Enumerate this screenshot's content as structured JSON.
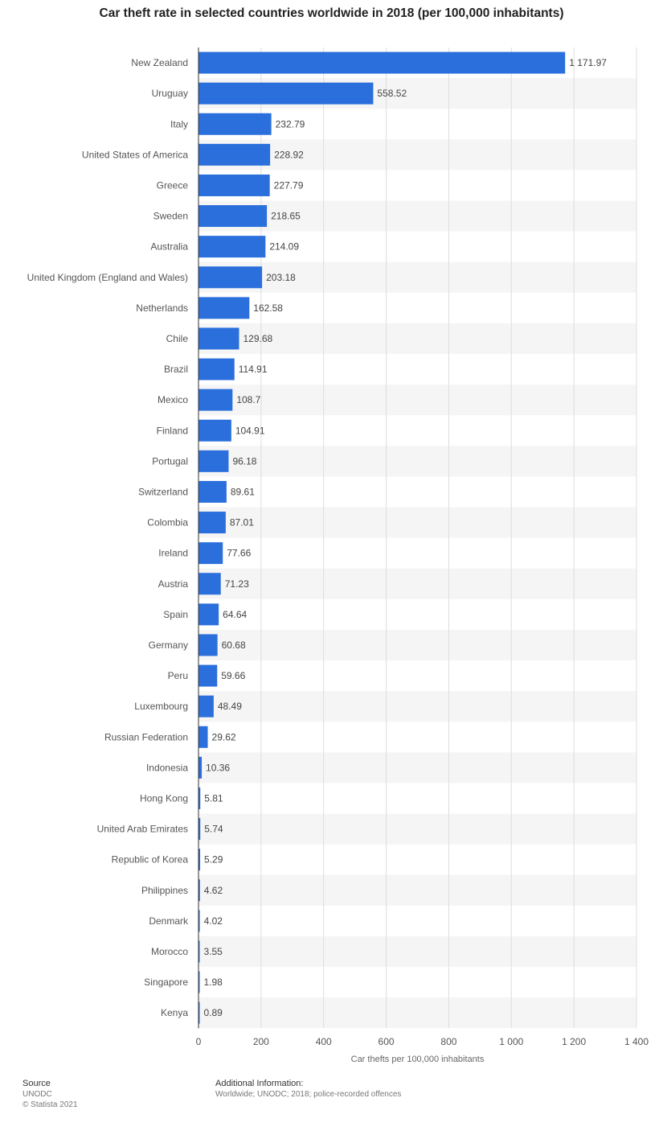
{
  "chart_data": {
    "type": "bar",
    "orientation": "horizontal",
    "title": "Car theft rate in selected countries worldwide in 2018 (per 100,000 inhabitants)",
    "xlabel": "Car thefts per 100,000 inhabitants",
    "ylabel": "",
    "xlim": [
      0,
      1400
    ],
    "xticks": [
      0,
      200,
      400,
      600,
      800,
      1000,
      1200,
      1400
    ],
    "xtick_labels": [
      "0",
      "200",
      "400",
      "600",
      "800",
      "1 000",
      "1 200",
      "1 400"
    ],
    "grid": true,
    "bar_color": "#2a6fdb",
    "categories": [
      "New Zealand",
      "Uruguay",
      "Italy",
      "United States of America",
      "Greece",
      "Sweden",
      "Australia",
      "United Kingdom (England and Wales)",
      "Netherlands",
      "Chile",
      "Brazil",
      "Mexico",
      "Finland",
      "Portugal",
      "Switzerland",
      "Colombia",
      "Ireland",
      "Austria",
      "Spain",
      "Germany",
      "Peru",
      "Luxembourg",
      "Russian Federation",
      "Indonesia",
      "Hong Kong",
      "United Arab Emirates",
      "Republic of Korea",
      "Philippines",
      "Denmark",
      "Morocco",
      "Singapore",
      "Kenya"
    ],
    "values": [
      1171.97,
      558.52,
      232.79,
      228.92,
      227.79,
      218.65,
      214.09,
      203.18,
      162.58,
      129.68,
      114.91,
      108.7,
      104.91,
      96.18,
      89.61,
      87.01,
      77.66,
      71.23,
      64.64,
      60.68,
      59.66,
      48.49,
      29.62,
      10.36,
      5.81,
      5.74,
      5.29,
      4.62,
      4.02,
      3.55,
      1.98,
      0.89
    ],
    "value_labels": [
      "1 171.97",
      "558.52",
      "232.79",
      "228.92",
      "227.79",
      "218.65",
      "214.09",
      "203.18",
      "162.58",
      "129.68",
      "114.91",
      "108.7",
      "104.91",
      "96.18",
      "89.61",
      "87.01",
      "77.66",
      "71.23",
      "64.64",
      "60.68",
      "59.66",
      "48.49",
      "29.62",
      "10.36",
      "5.81",
      "5.74",
      "5.29",
      "4.62",
      "4.02",
      "3.55",
      "1.98",
      "0.89"
    ]
  },
  "footer": {
    "source_heading": "Source",
    "source_text": "UNODC",
    "copyright": "© Statista 2021",
    "additional_heading": "Additional Information:",
    "additional_text": "Worldwide; UNODC; 2018; police-recorded offences"
  }
}
